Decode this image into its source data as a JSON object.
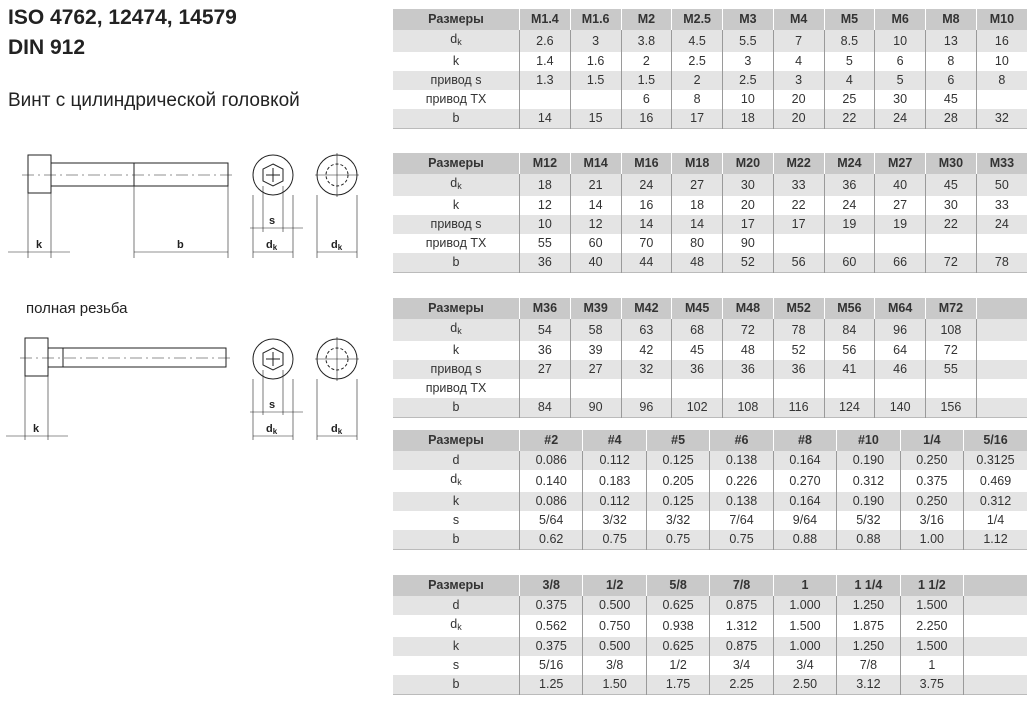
{
  "header": {
    "title_line1": "ISO 4762, 12474, 14579",
    "title_line2": "DIN 912",
    "subtitle": "Винт с цилиндрической головкой",
    "full_thread_caption": "полная резьба"
  },
  "drawing_labels": {
    "k": "k",
    "b": "b",
    "s": "s",
    "dk": "d",
    "dk_sub": "k"
  },
  "tables": [
    {
      "header": [
        "Размеры",
        "M1.4",
        "M1.6",
        "M2",
        "M2.5",
        "M3",
        "M4",
        "M5",
        "M6",
        "M8",
        "M10"
      ],
      "rows": [
        {
          "label": "d",
          "sub": "k",
          "values": [
            "2.6",
            "3",
            "3.8",
            "4.5",
            "5.5",
            "7",
            "8.5",
            "10",
            "13",
            "16"
          ]
        },
        {
          "label": "k",
          "values": [
            "1.4",
            "1.6",
            "2",
            "2.5",
            "3",
            "4",
            "5",
            "6",
            "8",
            "10"
          ]
        },
        {
          "label": "привод s",
          "values": [
            "1.3",
            "1.5",
            "1.5",
            "2",
            "2.5",
            "3",
            "4",
            "5",
            "6",
            "8"
          ]
        },
        {
          "label": "привод TX",
          "values": [
            "",
            "",
            "6",
            "8",
            "10",
            "20",
            "25",
            "30",
            "45",
            ""
          ]
        },
        {
          "label": "b",
          "values": [
            "14",
            "15",
            "16",
            "17",
            "18",
            "20",
            "22",
            "24",
            "28",
            "32"
          ]
        }
      ]
    },
    {
      "header": [
        "Размеры",
        "M12",
        "M14",
        "M16",
        "M18",
        "M20",
        "M22",
        "M24",
        "M27",
        "M30",
        "M33"
      ],
      "rows": [
        {
          "label": "d",
          "sub": "k",
          "values": [
            "18",
            "21",
            "24",
            "27",
            "30",
            "33",
            "36",
            "40",
            "45",
            "50"
          ]
        },
        {
          "label": "k",
          "values": [
            "12",
            "14",
            "16",
            "18",
            "20",
            "22",
            "24",
            "27",
            "30",
            "33"
          ]
        },
        {
          "label": "привод s",
          "values": [
            "10",
            "12",
            "14",
            "14",
            "17",
            "17",
            "19",
            "19",
            "22",
            "24"
          ]
        },
        {
          "label": "привод TX",
          "values": [
            "55",
            "60",
            "70",
            "80",
            "90",
            "",
            "",
            "",
            "",
            ""
          ]
        },
        {
          "label": "b",
          "values": [
            "36",
            "40",
            "44",
            "48",
            "52",
            "56",
            "60",
            "66",
            "72",
            "78"
          ]
        }
      ]
    },
    {
      "header": [
        "Размеры",
        "M36",
        "M39",
        "M42",
        "M45",
        "M48",
        "M52",
        "M56",
        "M64",
        "M72",
        ""
      ],
      "rows": [
        {
          "label": "d",
          "sub": "k",
          "values": [
            "54",
            "58",
            "63",
            "68",
            "72",
            "78",
            "84",
            "96",
            "108",
            ""
          ]
        },
        {
          "label": "k",
          "values": [
            "36",
            "39",
            "42",
            "45",
            "48",
            "52",
            "56",
            "64",
            "72",
            ""
          ]
        },
        {
          "label": "привод s",
          "values": [
            "27",
            "27",
            "32",
            "36",
            "36",
            "36",
            "41",
            "46",
            "55",
            ""
          ]
        },
        {
          "label": "привод TX",
          "values": [
            "",
            "",
            "",
            "",
            "",
            "",
            "",
            "",
            "",
            ""
          ]
        },
        {
          "label": "b",
          "values": [
            "84",
            "90",
            "96",
            "102",
            "108",
            "116",
            "124",
            "140",
            "156",
            ""
          ]
        }
      ]
    },
    {
      "header": [
        "Размеры",
        "#2",
        "#4",
        "#5",
        "#6",
        "#8",
        "#10",
        "1/4",
        "5/16"
      ],
      "rows": [
        {
          "label": "d",
          "values": [
            "0.086",
            "0.112",
            "0.125",
            "0.138",
            "0.164",
            "0.190",
            "0.250",
            "0.3125"
          ]
        },
        {
          "label": "d",
          "sub": "k",
          "values": [
            "0.140",
            "0.183",
            "0.205",
            "0.226",
            "0.270",
            "0.312",
            "0.375",
            "0.469"
          ]
        },
        {
          "label": "k",
          "values": [
            "0.086",
            "0.112",
            "0.125",
            "0.138",
            "0.164",
            "0.190",
            "0.250",
            "0.312"
          ]
        },
        {
          "label": "s",
          "values": [
            "5/64",
            "3/32",
            "3/32",
            "7/64",
            "9/64",
            "5/32",
            "3/16",
            "1/4"
          ]
        },
        {
          "label": "b",
          "values": [
            "0.62",
            "0.75",
            "0.75",
            "0.75",
            "0.88",
            "0.88",
            "1.00",
            "1.12"
          ]
        }
      ]
    },
    {
      "header": [
        "Размеры",
        "3/8",
        "1/2",
        "5/8",
        "7/8",
        "1",
        "1 1/4",
        "1 1/2",
        ""
      ],
      "rows": [
        {
          "label": "d",
          "values": [
            "0.375",
            "0.500",
            "0.625",
            "0.875",
            "1.000",
            "1.250",
            "1.500",
            ""
          ]
        },
        {
          "label": "d",
          "sub": "k",
          "values": [
            "0.562",
            "0.750",
            "0.938",
            "1.312",
            "1.500",
            "1.875",
            "2.250",
            ""
          ]
        },
        {
          "label": "k",
          "values": [
            "0.375",
            "0.500",
            "0.625",
            "0.875",
            "1.000",
            "1.250",
            "1.500",
            ""
          ]
        },
        {
          "label": "s",
          "values": [
            "5/16",
            "3/8",
            "1/2",
            "3/4",
            "3/4",
            "7/8",
            "1",
            ""
          ]
        },
        {
          "label": "b",
          "values": [
            "1.25",
            "1.50",
            "1.75",
            "2.25",
            "2.50",
            "3.12",
            "3.75",
            ""
          ]
        }
      ]
    }
  ]
}
